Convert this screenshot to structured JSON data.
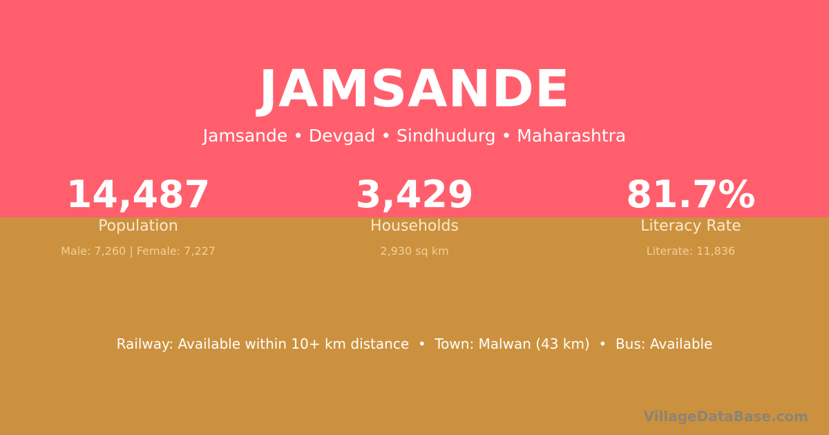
{
  "village": {
    "name": "JAMSANDE",
    "breadcrumb": "Jamsande • Devgad • Sindhudurg • Maharashtra"
  },
  "stats": [
    {
      "value": "14,487",
      "label": "Population",
      "detail": "Male: 7,260 | Female: 7,227"
    },
    {
      "value": "3,429",
      "label": "Households",
      "detail": "2,930 sq km"
    },
    {
      "value": "81.7%",
      "label": "Literacy Rate",
      "detail": "Literate: 11,836"
    }
  ],
  "connectivity": "Railway: Available within 10+ km distance  •  Town: Malwan (43 km)  •  Bus: Available",
  "watermark": "VillageDataBase.com",
  "colors": {
    "top": "#ff5f6d",
    "bottom": "#cc913e"
  }
}
